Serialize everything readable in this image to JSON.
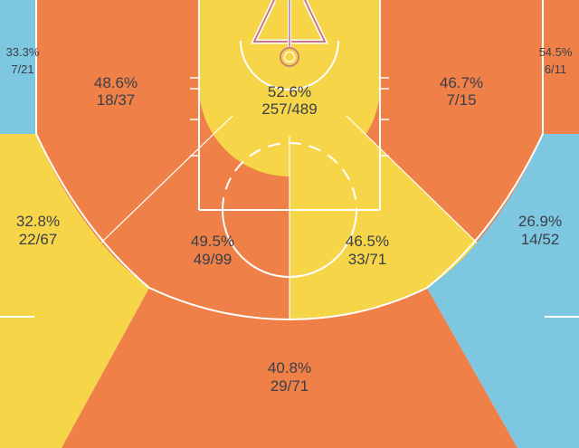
{
  "chart_data": {
    "type": "shot-chart",
    "title": "",
    "colors": {
      "above_average": "#ee8048",
      "average": "#f6d549",
      "below_average": "#7dc7e0",
      "court_lines": "#ffffff",
      "hoop": "#c57a86",
      "text": "#3a3f4a"
    },
    "zones": [
      {
        "id": "restricted-area",
        "pct": "52.6%",
        "made_attempted": "257/489",
        "made": 257,
        "attempted": 489,
        "color": "#f6d549"
      },
      {
        "id": "left-baseline-mid",
        "pct": "48.6%",
        "made_attempted": "18/37",
        "made": 18,
        "attempted": 37,
        "color": "#ee8048"
      },
      {
        "id": "right-baseline-mid",
        "pct": "46.7%",
        "made_attempted": "7/15",
        "made": 7,
        "attempted": 15,
        "color": "#ee8048"
      },
      {
        "id": "left-elbow-mid",
        "pct": "49.5%",
        "made_attempted": "49/99",
        "made": 49,
        "attempted": 99,
        "color": "#ee8048"
      },
      {
        "id": "right-elbow-mid",
        "pct": "46.5%",
        "made_attempted": "33/71",
        "made": 33,
        "attempted": 71,
        "color": "#f6d549"
      },
      {
        "id": "left-corner-three",
        "pct": "33.3%",
        "made_attempted": "7/21",
        "made": 7,
        "attempted": 21,
        "color": "#7dc7e0"
      },
      {
        "id": "right-corner-three",
        "pct": "54.5%",
        "made_attempted": "6/11",
        "made": 6,
        "attempted": 11,
        "color": "#ee8048"
      },
      {
        "id": "left-wing-three",
        "pct": "32.8%",
        "made_attempted": "22/67",
        "made": 22,
        "attempted": 67,
        "color": "#f6d549"
      },
      {
        "id": "right-wing-three",
        "pct": "26.9%",
        "made_attempted": "14/52",
        "made": 14,
        "attempted": 52,
        "color": "#7dc7e0"
      },
      {
        "id": "top-of-key-three",
        "pct": "40.8%",
        "made_attempted": "29/71",
        "made": 29,
        "attempted": 71,
        "color": "#ee8048"
      }
    ]
  }
}
